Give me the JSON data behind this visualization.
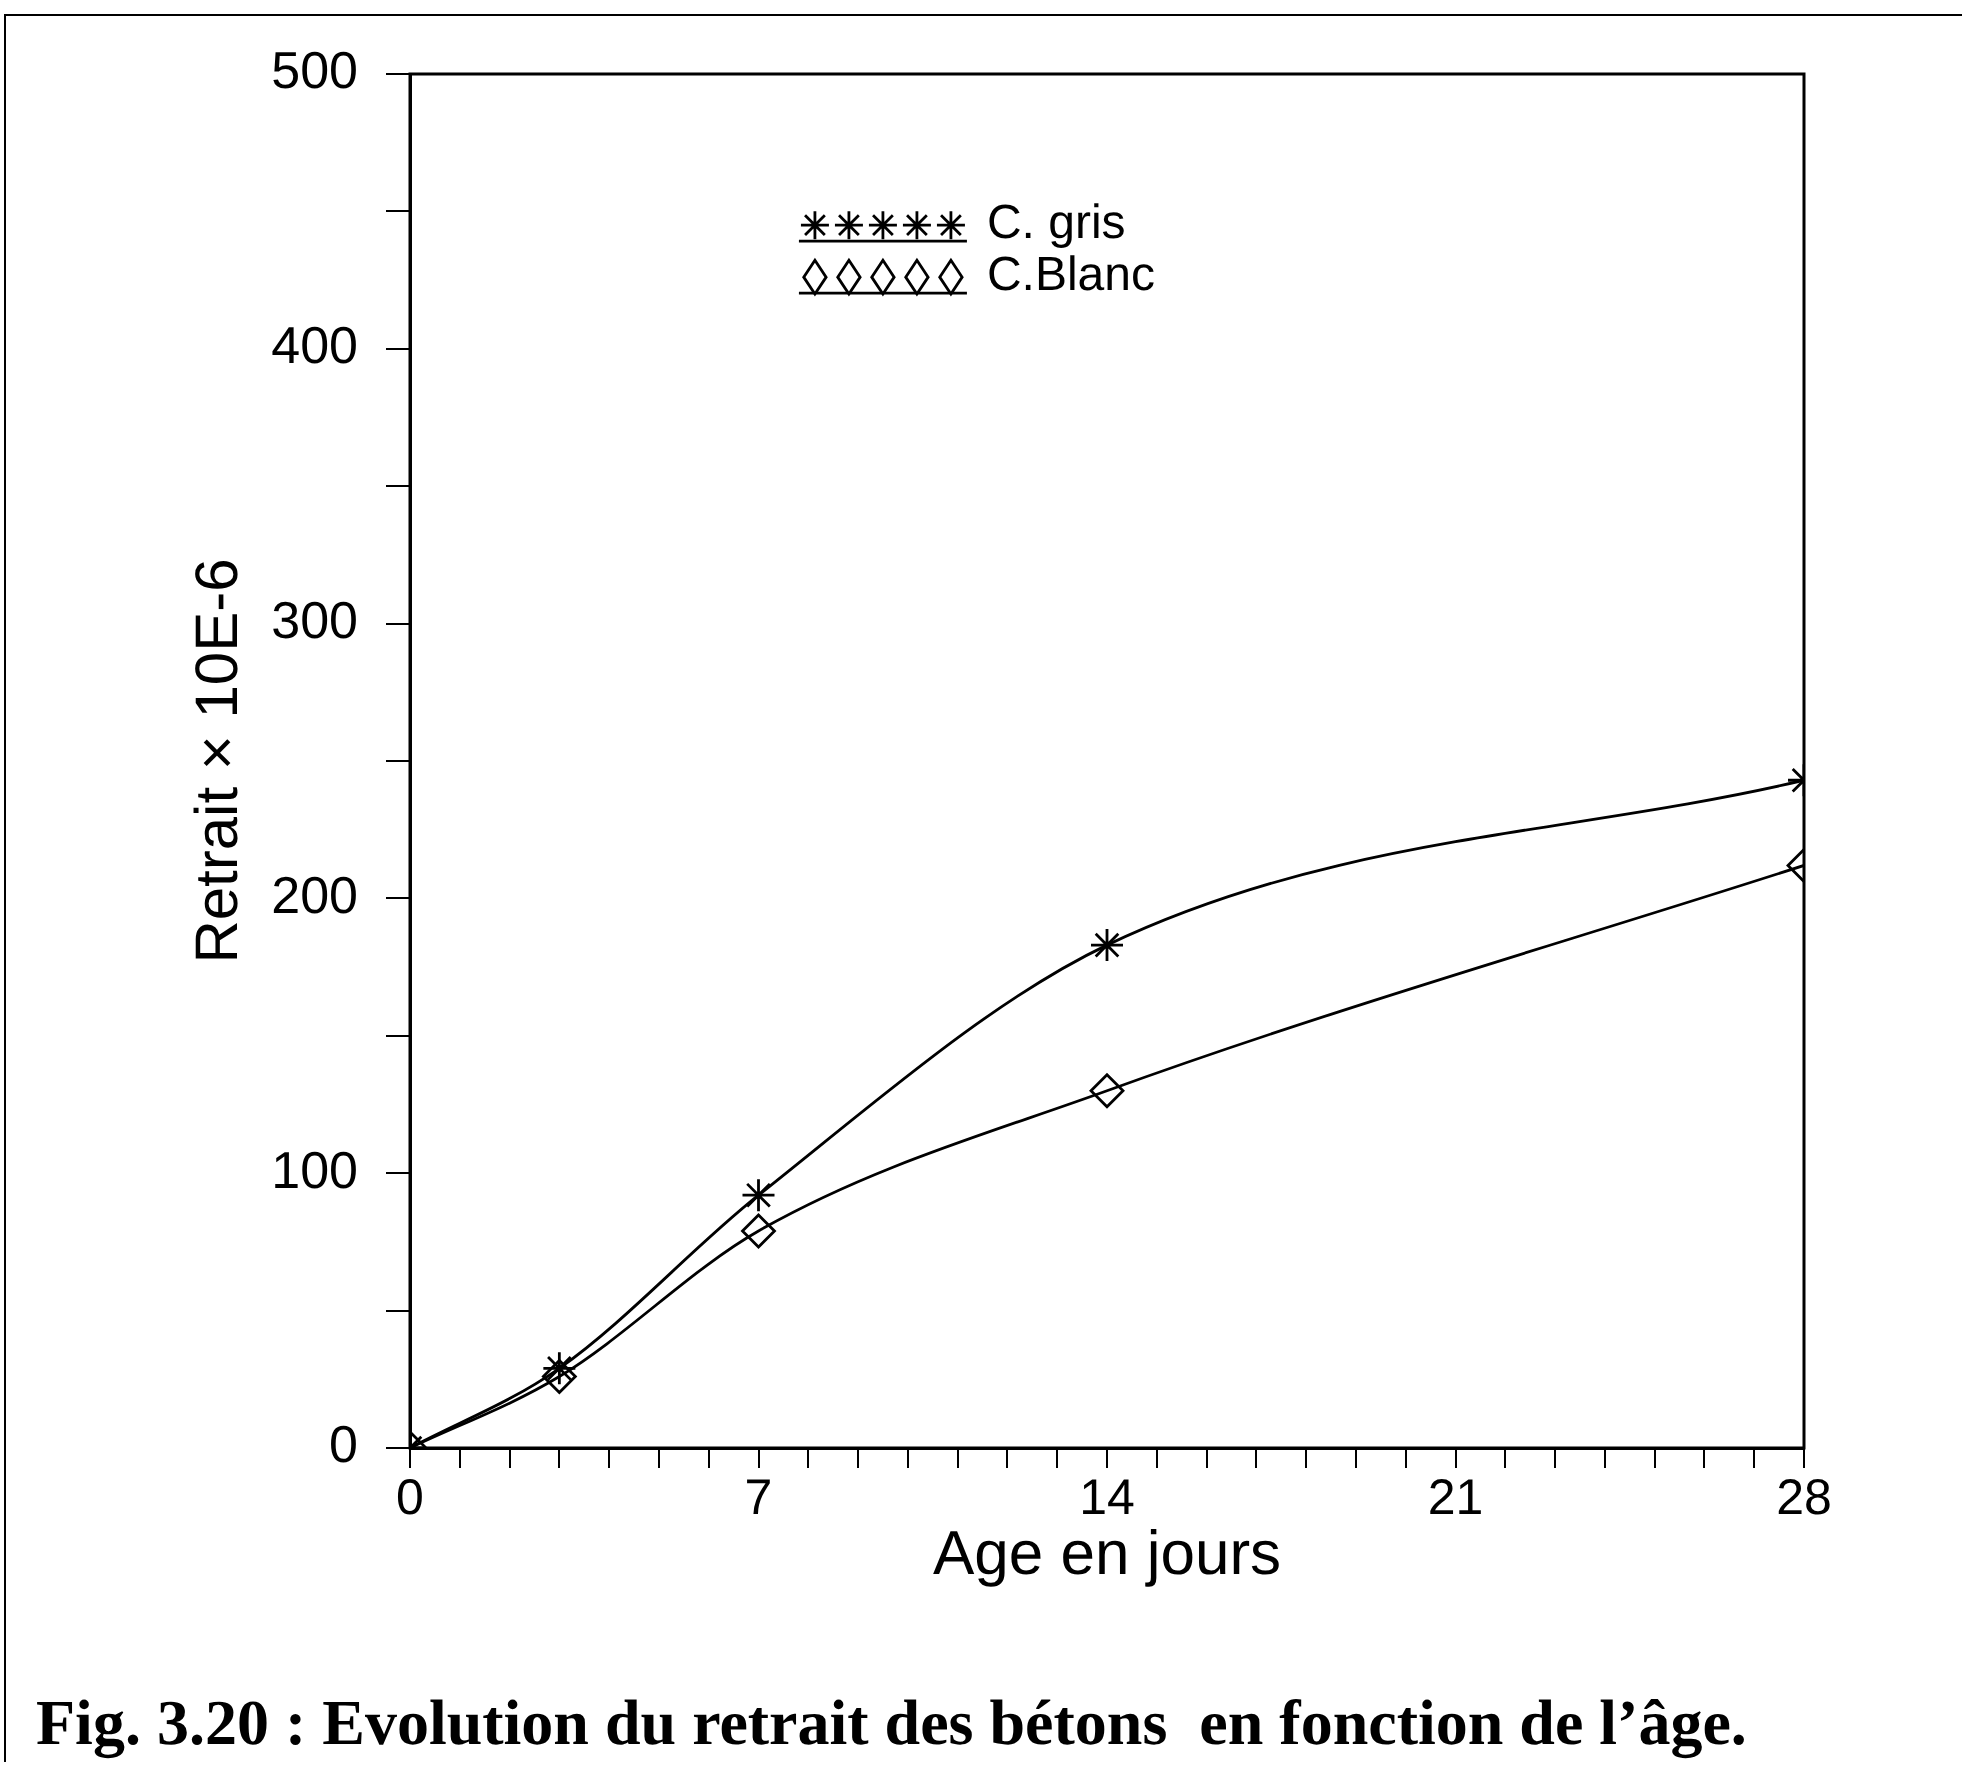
{
  "chart_data": {
    "type": "line",
    "xlabel": "Age en jours",
    "ylabel": "Retrait × 10E-6",
    "annotations": [
      "Fig. 3.20 : Evolution du retrait des bétons  en fonction de l’âge."
    ],
    "x": [
      0,
      3,
      7,
      14,
      28
    ],
    "series": [
      {
        "name": "C. gris",
        "color": "#000000",
        "marker": "cross",
        "values": [
          0,
          29,
          92,
          183,
          243
        ]
      },
      {
        "name": "C.Blanc",
        "color": "#000000",
        "marker": "diamond",
        "values": [
          0,
          26,
          79,
          130,
          212
        ]
      }
    ],
    "xlim": [
      0,
      28
    ],
    "xticks": [
      0,
      {
        "value": 1,
        "label": null
      },
      {
        "value": 2,
        "label": null
      },
      {
        "value": 3,
        "label": null
      },
      {
        "value": 4,
        "label": null
      },
      {
        "value": 5,
        "label": null
      },
      {
        "value": 6,
        "label": null
      },
      7,
      {
        "value": 8,
        "label": null
      },
      {
        "value": 9,
        "label": null
      },
      {
        "value": 10,
        "label": null
      },
      {
        "value": 11,
        "label": null
      },
      {
        "value": 12,
        "label": null
      },
      {
        "value": 13,
        "label": null
      },
      14,
      {
        "value": 15,
        "label": null
      },
      {
        "value": 16,
        "label": null
      },
      {
        "value": 17,
        "label": null
      },
      {
        "value": 18,
        "label": null
      },
      {
        "value": 19,
        "label": null
      },
      {
        "value": 20,
        "label": null
      },
      21,
      {
        "value": 22,
        "label": null
      },
      {
        "value": 23,
        "label": null
      },
      {
        "value": 24,
        "label": null
      },
      {
        "value": 25,
        "label": null
      },
      {
        "value": 26,
        "label": null
      },
      {
        "value": 27,
        "label": null
      },
      28
    ],
    "ylim": [
      0,
      500
    ],
    "yticks": [
      0,
      {
        "value": 50,
        "label": null
      },
      100,
      {
        "value": 150,
        "label": null
      },
      200,
      {
        "value": 250,
        "label": null
      },
      300,
      {
        "value": 350,
        "label": null
      },
      400,
      {
        "value": 450,
        "label": null
      },
      500
    ],
    "grid": false,
    "legend": "top"
  }
}
